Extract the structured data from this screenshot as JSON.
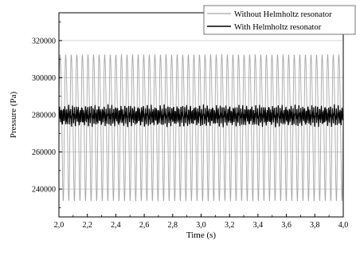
{
  "chart_data": {
    "type": "line",
    "xlabel": "Time (s)",
    "ylabel": "Pressure (Pa)",
    "xlim": [
      2.0,
      4.0
    ],
    "ylim": [
      225000,
      335000
    ],
    "x_ticks": [
      "2,0",
      "2,2",
      "2,4",
      "2,6",
      "2,8",
      "3,0",
      "3,2",
      "3,4",
      "3,6",
      "3,8",
      "4,0"
    ],
    "y_ticks": [
      "240000",
      "260000",
      "280000",
      "300000",
      "320000"
    ],
    "grid": "horizontal",
    "legend_position": "top-right",
    "series": [
      {
        "name": "Without Helmholtz resonator",
        "color": "#a6a6a6",
        "mean": 276000,
        "amplitude": 42000,
        "cycles_per_second": 25.5
      },
      {
        "name": "With Helmholtz resonator",
        "color": "#000000",
        "mean": 279500,
        "amplitude": 4500,
        "cycles_per_second": 76
      }
    ]
  }
}
